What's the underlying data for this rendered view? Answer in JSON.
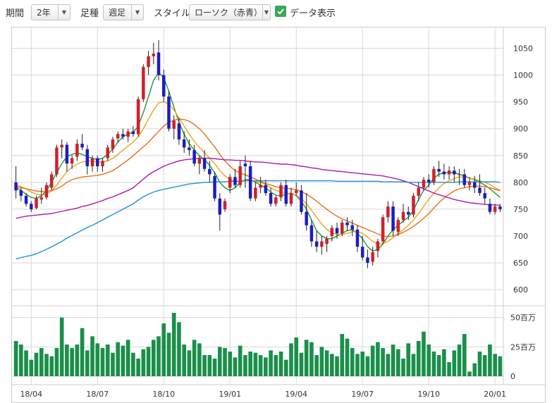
{
  "toolbar": {
    "period_label": "期間",
    "period_value": "2年",
    "candle_label": "足種",
    "candle_value": "週足",
    "style_label": "スタイル",
    "style_value": "ローソク（赤青）",
    "data_display_label": "データ表示",
    "data_display_checked": true
  },
  "colors": {
    "up_candle": "#d0202a",
    "down_candle": "#1d1dbf",
    "ma_green": "#1a9a3a",
    "ma_orange_light": "#f0a020",
    "ma_orange_dark": "#e86f1a",
    "ma_purple": "#b018a8",
    "ma_blue": "#2090d8",
    "volume_bar": "#1a8f4a",
    "grid": "#d8d8d8"
  },
  "chart_data": {
    "type": "candlestick",
    "price_axis": {
      "ylim": [
        570,
        1090
      ],
      "ticks": [
        "1050",
        "1000",
        "950",
        "900",
        "850",
        "800",
        "750",
        "700",
        "650",
        "600"
      ]
    },
    "volume_axis": {
      "ylim": [
        0,
        60
      ],
      "ticks": [
        "50百万",
        "25百万",
        "0"
      ]
    },
    "x_ticks": [
      "18/04",
      "18/07",
      "18/10",
      "19/01",
      "19/04",
      "19/07",
      "19/10",
      "20/01"
    ],
    "x_tick_index": [
      3,
      16,
      29,
      42,
      55,
      68,
      81,
      94
    ],
    "candles": [
      [
        800,
        830,
        770,
        785
      ],
      [
        785,
        790,
        765,
        775
      ],
      [
        775,
        780,
        755,
        760
      ],
      [
        760,
        765,
        745,
        750
      ],
      [
        752,
        775,
        750,
        770
      ],
      [
        768,
        790,
        760,
        772
      ],
      [
        772,
        800,
        768,
        795
      ],
      [
        790,
        820,
        785,
        815
      ],
      [
        815,
        870,
        810,
        865
      ],
      [
        865,
        880,
        845,
        870
      ],
      [
        870,
        875,
        820,
        835
      ],
      [
        835,
        850,
        825,
        845
      ],
      [
        848,
        880,
        840,
        872
      ],
      [
        872,
        890,
        860,
        865
      ],
      [
        862,
        870,
        815,
        830
      ],
      [
        830,
        850,
        820,
        845
      ],
      [
        845,
        850,
        820,
        830
      ],
      [
        830,
        845,
        820,
        840
      ],
      [
        845,
        870,
        840,
        865
      ],
      [
        862,
        885,
        855,
        880
      ],
      [
        882,
        895,
        875,
        890
      ],
      [
        890,
        900,
        880,
        885
      ],
      [
        885,
        900,
        875,
        895
      ],
      [
        895,
        905,
        885,
        890
      ],
      [
        890,
        960,
        885,
        955
      ],
      [
        955,
        1020,
        950,
        1015
      ],
      [
        1015,
        1045,
        1000,
        1035
      ],
      [
        1035,
        1060,
        1020,
        1040
      ],
      [
        1042,
        1065,
        990,
        1000
      ],
      [
        1000,
        1010,
        950,
        960
      ],
      [
        960,
        970,
        895,
        900
      ],
      [
        900,
        925,
        880,
        915
      ],
      [
        910,
        920,
        870,
        880
      ],
      [
        880,
        895,
        855,
        865
      ],
      [
        865,
        880,
        850,
        860
      ],
      [
        860,
        870,
        830,
        835
      ],
      [
        835,
        850,
        815,
        845
      ],
      [
        845,
        860,
        820,
        825
      ],
      [
        825,
        840,
        800,
        815
      ],
      [
        812,
        820,
        765,
        770
      ],
      [
        770,
        780,
        710,
        740
      ],
      [
        750,
        770,
        745,
        765
      ],
      [
        790,
        815,
        780,
        810
      ],
      [
        810,
        825,
        790,
        795
      ],
      [
        795,
        840,
        790,
        830
      ],
      [
        835,
        850,
        790,
        830
      ],
      [
        830,
        840,
        765,
        770
      ],
      [
        770,
        800,
        765,
        790
      ],
      [
        790,
        810,
        780,
        795
      ],
      [
        795,
        805,
        775,
        780
      ],
      [
        780,
        790,
        755,
        760
      ],
      [
        760,
        775,
        755,
        772
      ],
      [
        772,
        800,
        765,
        795
      ],
      [
        795,
        805,
        755,
        760
      ],
      [
        760,
        790,
        755,
        780
      ],
      [
        780,
        800,
        775,
        785
      ],
      [
        785,
        795,
        740,
        745
      ],
      [
        745,
        780,
        710,
        720
      ],
      [
        720,
        730,
        680,
        690
      ],
      [
        690,
        710,
        670,
        680
      ],
      [
        680,
        700,
        665,
        690
      ],
      [
        685,
        700,
        670,
        695
      ],
      [
        700,
        720,
        690,
        715
      ],
      [
        715,
        725,
        695,
        705
      ],
      [
        705,
        730,
        700,
        725
      ],
      [
        725,
        735,
        710,
        720
      ],
      [
        720,
        730,
        700,
        712
      ],
      [
        712,
        720,
        670,
        680
      ],
      [
        680,
        700,
        655,
        660
      ],
      [
        660,
        675,
        640,
        650
      ],
      [
        652,
        680,
        645,
        670
      ],
      [
        672,
        695,
        660,
        690
      ],
      [
        690,
        740,
        685,
        735
      ],
      [
        735,
        765,
        725,
        755
      ],
      [
        755,
        765,
        700,
        710
      ],
      [
        708,
        735,
        700,
        730
      ],
      [
        730,
        760,
        725,
        745
      ],
      [
        745,
        755,
        730,
        740
      ],
      [
        740,
        780,
        735,
        775
      ],
      [
        775,
        800,
        765,
        790
      ],
      [
        790,
        810,
        785,
        805
      ],
      [
        805,
        815,
        790,
        800
      ],
      [
        800,
        830,
        795,
        825
      ],
      [
        825,
        840,
        810,
        820
      ],
      [
        820,
        835,
        805,
        815
      ],
      [
        815,
        830,
        805,
        822
      ],
      [
        822,
        830,
        800,
        815
      ],
      [
        815,
        825,
        795,
        815
      ],
      [
        815,
        825,
        790,
        795
      ],
      [
        795,
        810,
        785,
        800
      ],
      [
        800,
        812,
        780,
        790
      ],
      [
        790,
        815,
        775,
        780
      ],
      [
        780,
        790,
        760,
        770
      ],
      [
        760,
        770,
        740,
        745
      ],
      [
        745,
        760,
        740,
        755
      ],
      [
        755,
        760,
        745,
        750
      ]
    ],
    "volumes": [
      30,
      27,
      22,
      14,
      20,
      24,
      19,
      17,
      24,
      50,
      27,
      24,
      27,
      41,
      22,
      34,
      28,
      24,
      27,
      20,
      29,
      26,
      31,
      20,
      15,
      23,
      25,
      31,
      34,
      45,
      37,
      54,
      46,
      27,
      22,
      31,
      28,
      18,
      18,
      15,
      25,
      24,
      21,
      16,
      26,
      18,
      21,
      20,
      18,
      16,
      22,
      18,
      21,
      14,
      28,
      33,
      20,
      31,
      29,
      18,
      25,
      22,
      19,
      17,
      36,
      32,
      24,
      19,
      21,
      17,
      26,
      29,
      24,
      19,
      27,
      23,
      15,
      28,
      19,
      30,
      38,
      27,
      21,
      18,
      23,
      12,
      22,
      27,
      36,
      4,
      11,
      21,
      18,
      27,
      19,
      17
    ],
    "moving_averages": [
      {
        "color_key": "ma_green",
        "values": [
          790,
          785,
          778,
          772,
          770,
          775,
          785,
          800,
          818,
          835,
          848,
          852,
          855,
          852,
          848,
          845,
          842,
          845,
          852,
          862,
          875,
          885,
          890,
          893,
          905,
          930,
          960,
          990,
          1005,
          995,
          970,
          940,
          912,
          890,
          872,
          860,
          850,
          842,
          832,
          818,
          800,
          790,
          785,
          790,
          800,
          805,
          805,
          800,
          795,
          790,
          782,
          776,
          775,
          778,
          780,
          775,
          765,
          750,
          730,
          710,
          700,
          695,
          695,
          700,
          705,
          710,
          712,
          705,
          695,
          680,
          672,
          675,
          685,
          700,
          712,
          720,
          728,
          735,
          748,
          768,
          785,
          795,
          808,
          815,
          818,
          818,
          818,
          815,
          812,
          808,
          805,
          800,
          795,
          788,
          780,
          772
        ]
      },
      {
        "color_key": "ma_orange_light",
        "values": [
          795,
          792,
          788,
          782,
          778,
          776,
          778,
          784,
          795,
          808,
          820,
          828,
          834,
          838,
          840,
          840,
          838,
          838,
          840,
          845,
          852,
          860,
          868,
          875,
          885,
          900,
          918,
          935,
          948,
          950,
          946,
          935,
          920,
          905,
          890,
          876,
          865,
          855,
          845,
          835,
          822,
          812,
          805,
          802,
          802,
          804,
          804,
          802,
          800,
          796,
          790,
          785,
          782,
          780,
          779,
          776,
          770,
          760,
          748,
          735,
          722,
          712,
          706,
          703,
          703,
          705,
          708,
          708,
          705,
          698,
          690,
          685,
          686,
          690,
          697,
          705,
          712,
          720,
          730,
          742,
          755,
          768,
          780,
          790,
          798,
          803,
          807,
          810,
          810,
          808,
          806,
          803,
          800,
          796,
          790,
          785
        ]
      },
      {
        "color_key": "ma_orange_dark",
        "values": [
          792,
          790,
          788,
          786,
          784,
          783,
          783,
          785,
          788,
          793,
          800,
          805,
          808,
          810,
          811,
          812,
          813,
          815,
          818,
          822,
          828,
          835,
          842,
          850,
          858,
          866,
          875,
          885,
          895,
          905,
          912,
          916,
          918,
          917,
          914,
          908,
          900,
          890,
          878,
          866,
          852,
          840,
          830,
          822,
          818,
          814,
          810,
          806,
          802,
          798,
          795,
          792,
          790,
          789,
          788,
          786,
          783,
          778,
          772,
          765,
          757,
          750,
          743,
          737,
          732,
          728,
          724,
          720,
          716,
          712,
          708,
          704,
          700,
          699,
          700,
          703,
          707,
          712,
          718,
          725,
          733,
          742,
          752,
          762,
          771,
          778,
          784,
          788,
          790,
          792,
          793,
          793,
          792,
          790,
          787,
          784
        ]
      },
      {
        "color_key": "ma_purple",
        "values": [
          733,
          735,
          737,
          738,
          739,
          740,
          741,
          742,
          744,
          746,
          748,
          750,
          752,
          755,
          757,
          760,
          763,
          766,
          770,
          773,
          777,
          781,
          785,
          790,
          798,
          806,
          814,
          820,
          825,
          830,
          834,
          837,
          840,
          842,
          843,
          844,
          845,
          845,
          845,
          844,
          843,
          842,
          842,
          841,
          841,
          840,
          839,
          838,
          838,
          837,
          836,
          835,
          834,
          834,
          833,
          832,
          830,
          829,
          827,
          826,
          824,
          823,
          822,
          821,
          820,
          819,
          818,
          817,
          816,
          815,
          814,
          813,
          812,
          810,
          808,
          806,
          803,
          800,
          796,
          792,
          788,
          784,
          780,
          777,
          774,
          771,
          768,
          766,
          764,
          762,
          761,
          760,
          759,
          758,
          758,
          757
        ]
      },
      {
        "color_key": "ma_blue",
        "values": [
          657,
          660,
          662,
          664,
          667,
          671,
          675,
          680,
          685,
          690,
          696,
          701,
          706,
          711,
          716,
          720,
          725,
          730,
          735,
          740,
          745,
          750,
          755,
          760,
          767,
          773,
          778,
          782,
          785,
          787,
          789,
          791,
          793,
          795,
          797,
          798,
          799,
          800,
          800,
          801,
          801,
          801,
          802,
          802,
          802,
          803,
          803,
          803,
          803,
          803,
          803,
          803,
          803,
          803,
          803,
          803,
          803,
          803,
          803,
          803,
          803,
          803,
          803,
          802,
          802,
          802,
          802,
          802,
          802,
          802,
          802,
          802,
          801,
          801,
          801,
          801,
          801,
          800,
          800,
          800,
          800,
          800,
          800,
          800,
          800,
          800,
          800,
          801,
          801,
          801,
          801,
          801,
          801,
          801,
          801,
          800
        ]
      }
    ]
  }
}
